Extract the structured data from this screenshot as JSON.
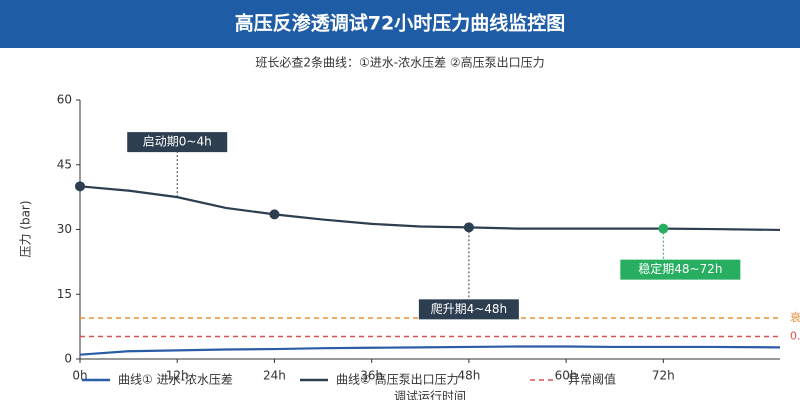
{
  "chart_data": {
    "type": "line",
    "title": "高压反渗透调试72小时压力曲线监控图",
    "subtitle": "班长必查2条曲线：①进水-浓水压差 ②高压泵出口压力",
    "x_label": "调试运行时间",
    "y_label": "压力 (bar)",
    "x": [
      0,
      6,
      12,
      18,
      24,
      30,
      36,
      42,
      48,
      54,
      60,
      66,
      72,
      78,
      86.4
    ],
    "series": [
      {
        "name": "曲线① 进水-浓水压差",
        "color": "#2a5ca8",
        "values": [
          1.0,
          1.8,
          2.0,
          2.2,
          2.3,
          2.5,
          2.6,
          2.7,
          2.8,
          2.9,
          2.9,
          2.8,
          2.8,
          2.8,
          2.7
        ]
      },
      {
        "name": "曲线② 高压泵出口压力",
        "color": "#2c3e50",
        "values": [
          40,
          39,
          37.5,
          35,
          33.5,
          32.3,
          31.3,
          30.7,
          30.5,
          30.2,
          30.2,
          30.2,
          30.2,
          30.1,
          29.9
        ]
      }
    ],
    "highlights": [
      {
        "x": 0,
        "y": 40,
        "color": "#2c3e50"
      },
      {
        "x": 24,
        "y": 33.5,
        "color": "#2c3e50"
      },
      {
        "x": 48,
        "y": 30.5,
        "color": "#2c3e50"
      },
      {
        "x": 72,
        "y": 30.2,
        "color": "#27ae60"
      }
    ],
    "threshold_legend": "异常阈值",
    "thresholds": [
      {
        "value": 9.5,
        "color": "#e8913a",
        "label": "衰"
      },
      {
        "value": 5.2,
        "color": "#d9534f",
        "label": "0."
      }
    ],
    "annotations": [
      {
        "text": "启动期0~4h",
        "x": 12,
        "y": 37.5,
        "color": "#2c3e50"
      },
      {
        "text": "爬升期4~48h",
        "x": 48,
        "y": 30.5,
        "color": "#2c3e50"
      },
      {
        "text": "稳定期48~72h",
        "x": 72,
        "y": 30.2,
        "color": "#27ae60"
      }
    ],
    "xlim": [
      0,
      86.4
    ],
    "ylim": [
      0,
      60
    ],
    "xticks": [
      {
        "value": 0,
        "label": "0h"
      },
      {
        "value": 12,
        "label": "12h"
      },
      {
        "value": 24,
        "label": "24h"
      },
      {
        "value": 36,
        "label": "36h"
      },
      {
        "value": 48,
        "label": "48h"
      },
      {
        "value": 60,
        "label": "60h"
      },
      {
        "value": 72,
        "label": "72h"
      }
    ],
    "yticks": [
      0,
      15,
      30,
      45,
      60
    ]
  }
}
